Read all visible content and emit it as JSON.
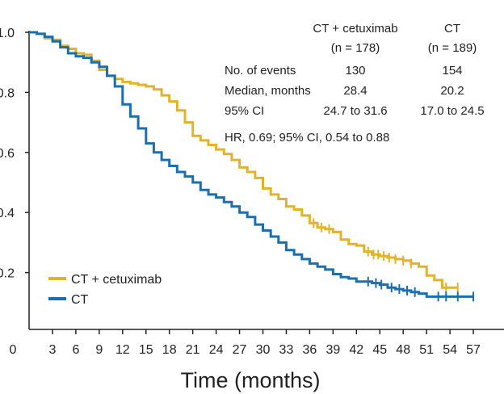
{
  "chart_data": {
    "type": "line",
    "subtype": "kaplan-meier",
    "title": "",
    "xlabel": "Time (months)",
    "ylabel": "",
    "xlim": [
      0,
      60
    ],
    "ylim": [
      0.0,
      1.0
    ],
    "x_ticks": [
      0,
      3,
      6,
      9,
      12,
      15,
      18,
      21,
      24,
      27,
      30,
      33,
      36,
      39,
      42,
      45,
      48,
      51,
      54,
      57
    ],
    "y_ticks": [
      {
        "value": 0.2,
        "label": "0.2"
      },
      {
        "value": 0.4,
        "label": "0.4"
      },
      {
        "value": 0.6,
        "label": "0.6"
      },
      {
        "value": 0.8,
        "label": "0.8"
      },
      {
        "value": 1.0,
        "label": "1.0"
      }
    ],
    "grid": false,
    "legend_position": "bottom-left",
    "series": [
      {
        "name": "CT + cetuximab",
        "color": "#E2B32A",
        "points": [
          [
            0,
            1.0
          ],
          [
            1,
            0.995
          ],
          [
            2,
            0.98
          ],
          [
            3,
            0.975
          ],
          [
            4,
            0.955
          ],
          [
            5,
            0.945
          ],
          [
            6,
            0.93
          ],
          [
            7,
            0.925
          ],
          [
            8,
            0.905
          ],
          [
            9,
            0.875
          ],
          [
            10,
            0.855
          ],
          [
            11,
            0.845
          ],
          [
            12,
            0.835
          ],
          [
            13,
            0.83
          ],
          [
            14,
            0.825
          ],
          [
            15,
            0.82
          ],
          [
            16,
            0.81
          ],
          [
            17,
            0.79
          ],
          [
            18,
            0.77
          ],
          [
            19,
            0.74
          ],
          [
            20,
            0.7
          ],
          [
            21,
            0.655
          ],
          [
            22,
            0.64
          ],
          [
            23,
            0.625
          ],
          [
            24,
            0.61
          ],
          [
            25,
            0.595
          ],
          [
            26,
            0.575
          ],
          [
            27,
            0.55
          ],
          [
            28,
            0.535
          ],
          [
            29,
            0.515
          ],
          [
            30,
            0.48
          ],
          [
            31,
            0.46
          ],
          [
            32,
            0.445
          ],
          [
            33,
            0.42
          ],
          [
            34,
            0.41
          ],
          [
            35,
            0.39
          ],
          [
            36,
            0.365
          ],
          [
            37,
            0.35
          ],
          [
            38,
            0.345
          ],
          [
            39,
            0.335
          ],
          [
            40,
            0.31
          ],
          [
            41,
            0.295
          ],
          [
            42,
            0.29
          ],
          [
            43,
            0.27
          ],
          [
            44,
            0.26
          ],
          [
            45,
            0.255
          ],
          [
            46,
            0.25
          ],
          [
            47,
            0.245
          ],
          [
            48,
            0.24
          ],
          [
            49,
            0.23
          ],
          [
            50,
            0.22
          ],
          [
            51,
            0.19
          ],
          [
            52,
            0.175
          ],
          [
            53,
            0.15
          ],
          [
            54,
            0.15
          ],
          [
            55,
            0.15
          ]
        ],
        "censor_x": [
          36.5,
          37.5,
          38.5,
          43.5,
          44.2,
          44.8,
          45.5,
          46.2,
          47,
          48,
          49,
          53.5,
          55
        ]
      },
      {
        "name": "CT",
        "color": "#1A6FB0",
        "points": [
          [
            0,
            1.0
          ],
          [
            1,
            0.995
          ],
          [
            2,
            0.985
          ],
          [
            3,
            0.97
          ],
          [
            4,
            0.95
          ],
          [
            5,
            0.93
          ],
          [
            6,
            0.92
          ],
          [
            7,
            0.915
          ],
          [
            8,
            0.9
          ],
          [
            9,
            0.885
          ],
          [
            10,
            0.855
          ],
          [
            11,
            0.82
          ],
          [
            12,
            0.76
          ],
          [
            13,
            0.72
          ],
          [
            14,
            0.68
          ],
          [
            15,
            0.63
          ],
          [
            16,
            0.6
          ],
          [
            17,
            0.575
          ],
          [
            18,
            0.555
          ],
          [
            19,
            0.535
          ],
          [
            20,
            0.52
          ],
          [
            21,
            0.5
          ],
          [
            22,
            0.475
          ],
          [
            23,
            0.46
          ],
          [
            24,
            0.45
          ],
          [
            25,
            0.435
          ],
          [
            26,
            0.42
          ],
          [
            27,
            0.4
          ],
          [
            28,
            0.385
          ],
          [
            29,
            0.36
          ],
          [
            30,
            0.34
          ],
          [
            31,
            0.32
          ],
          [
            32,
            0.3
          ],
          [
            33,
            0.275
          ],
          [
            34,
            0.26
          ],
          [
            35,
            0.245
          ],
          [
            36,
            0.23
          ],
          [
            37,
            0.22
          ],
          [
            38,
            0.21
          ],
          [
            39,
            0.195
          ],
          [
            40,
            0.185
          ],
          [
            41,
            0.18
          ],
          [
            42,
            0.17
          ],
          [
            43,
            0.17
          ],
          [
            44,
            0.165
          ],
          [
            45,
            0.16
          ],
          [
            46,
            0.15
          ],
          [
            47,
            0.145
          ],
          [
            48,
            0.14
          ],
          [
            49,
            0.135
          ],
          [
            50,
            0.13
          ],
          [
            51,
            0.12
          ],
          [
            52,
            0.12
          ],
          [
            53,
            0.12
          ],
          [
            54,
            0.12
          ],
          [
            55,
            0.12
          ],
          [
            56,
            0.12
          ],
          [
            57,
            0.12
          ]
        ],
        "censor_x": [
          43.5,
          44.5,
          45.2,
          46.5,
          47.5,
          48.5,
          49.5,
          52.5,
          53.5,
          55,
          57
        ]
      }
    ],
    "stats_table": {
      "col_headers": [
        {
          "name": "CT + cetuximab",
          "n": "(n = 178)"
        },
        {
          "name": "CT",
          "n": "(n = 189)"
        }
      ],
      "rows": [
        {
          "label": "No. of events",
          "values": [
            "130",
            "154"
          ]
        },
        {
          "label": "Median, months",
          "values": [
            "28.4",
            "20.2"
          ]
        },
        {
          "label": "95% CI",
          "values": [
            "24.7 to 31.6",
            "17.0 to 24.5"
          ]
        }
      ],
      "hr_text": "HR, 0.69; 95% CI, 0.54 to 0.88"
    }
  }
}
